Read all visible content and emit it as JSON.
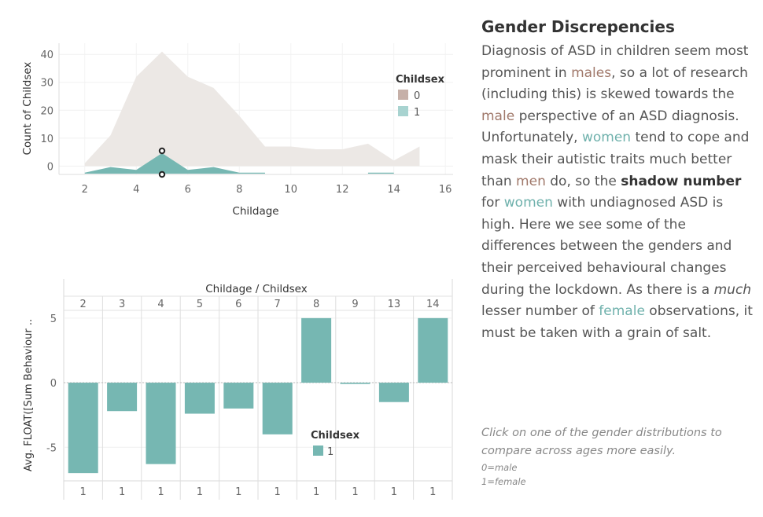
{
  "chart_data": [
    {
      "type": "area",
      "xlabel": "Childage",
      "ylabel": "Count of Childsex",
      "x_ticks": [
        2,
        4,
        6,
        8,
        10,
        12,
        14,
        16
      ],
      "y_ticks": [
        0,
        10,
        20,
        30,
        40
      ],
      "xlim": [
        1,
        16.3
      ],
      "ylim": [
        -3,
        44
      ],
      "grid": true,
      "legend": {
        "title": "Childsex",
        "position": "top-right",
        "entries": [
          {
            "label": "0",
            "color": "#c6b0a8"
          },
          {
            "label": "1",
            "color": "#a8d3d0"
          }
        ]
      },
      "series": [
        {
          "name": "0",
          "color": "#ece8e5",
          "x": [
            2,
            3,
            4,
            5,
            6,
            7,
            8,
            9,
            10,
            11,
            12,
            13,
            14,
            15
          ],
          "values": [
            1,
            11,
            32,
            41,
            32,
            28,
            18,
            7,
            7,
            6,
            6,
            8,
            2,
            7
          ]
        },
        {
          "name": "1",
          "color": "#76b7b2",
          "x": [
            2,
            3,
            4,
            5,
            6,
            7,
            8,
            9,
            13,
            14
          ],
          "values": [
            1,
            3,
            2,
            8,
            2,
            3,
            1,
            1,
            1,
            1
          ]
        }
      ],
      "highlight": {
        "x": 5,
        "values": [
          8,
          -1
        ]
      }
    },
    {
      "type": "bar",
      "header": "Childage / Childsex",
      "ylabel": "Avg. FLOAT([Sum Behaviour ..",
      "categories": [
        "2",
        "3",
        "4",
        "5",
        "6",
        "7",
        "8",
        "9",
        "13",
        "14"
      ],
      "sublabels": [
        "1",
        "1",
        "1",
        "1",
        "1",
        "1",
        "1",
        "1",
        "1",
        "1"
      ],
      "values": [
        -7.0,
        -2.2,
        -6.3,
        -2.4,
        -2.0,
        -4.0,
        5.0,
        -0.1,
        -1.5,
        5.0
      ],
      "y_ticks": [
        -5,
        0,
        5
      ],
      "ylim": [
        -7.6,
        5.6
      ],
      "color": "#76b7b2",
      "legend": {
        "title": "Childsex",
        "position": "middle-right",
        "entries": [
          {
            "label": "1",
            "color": "#76b7b2"
          }
        ]
      }
    }
  ],
  "story": {
    "title": "Gender Discrepencies",
    "body": [
      {
        "t": "Diagnosis of ASD in children seem most prominent in "
      },
      {
        "t": "males",
        "c": "m"
      },
      {
        "t": ", so a lot of research (including this) is skewed towards the "
      },
      {
        "t": "male",
        "c": "m"
      },
      {
        "t": " perspective of an ASD diagnosis. Unfortunately, "
      },
      {
        "t": "women",
        "c": "f"
      },
      {
        "t": " tend to cope and mask their autistic traits much better than "
      },
      {
        "t": "men",
        "c": "m"
      },
      {
        "t": " do, so the "
      },
      {
        "t": "shadow number",
        "c": "b"
      },
      {
        "t": " for "
      },
      {
        "t": "women",
        "c": "f"
      },
      {
        "t": " with undiagnosed ASD is high. Here we see some of the differences between the genders and their perceived behavioural changes during the lockdown. As there is a "
      },
      {
        "t": "much",
        "c": "i"
      },
      {
        "t": " lesser number of "
      },
      {
        "t": "female",
        "c": "f"
      },
      {
        "t": " observations, it must be taken with a grain of salt."
      }
    ]
  },
  "hint": {
    "main": "Click on one of the gender distributions to compare across ages more easily.",
    "key0": "0=male",
    "key1": "1=female"
  }
}
